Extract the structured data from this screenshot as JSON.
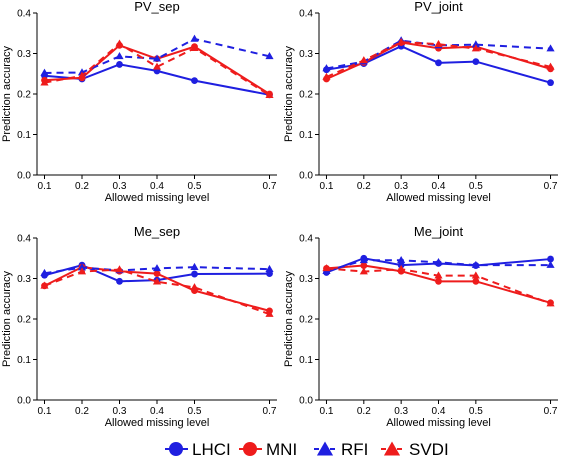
{
  "chart_data": [
    {
      "type": "line",
      "title": "PV_sep",
      "xlabel": "Allowed missing level",
      "ylabel": "Prediction accuracy",
      "x": [
        0.1,
        0.2,
        0.3,
        0.4,
        0.5,
        0.7
      ],
      "xlim": [
        0.08,
        0.72
      ],
      "ylim": [
        0.0,
        0.4
      ],
      "yticks": [
        "0.0",
        "0.1",
        "0.2",
        "0.3",
        "0.4"
      ],
      "xticks": [
        "0.1",
        "0.2",
        "0.3",
        "0.4",
        "0.5",
        "0.7"
      ],
      "series": [
        {
          "name": "LHCI",
          "values": [
            0.245,
            0.237,
            0.273,
            0.257,
            0.233,
            0.198
          ]
        },
        {
          "name": "MNI",
          "values": [
            0.234,
            0.24,
            0.32,
            0.287,
            0.317,
            0.2
          ]
        },
        {
          "name": "RFI",
          "values": [
            0.252,
            0.253,
            0.293,
            0.287,
            0.336,
            0.293
          ]
        },
        {
          "name": "SVDI",
          "values": [
            0.228,
            0.245,
            0.324,
            0.267,
            0.313,
            0.197
          ]
        }
      ]
    },
    {
      "type": "line",
      "title": "PV_joint",
      "xlabel": "Allowed missing level",
      "ylabel": "Prediction accuracy",
      "x": [
        0.1,
        0.2,
        0.3,
        0.4,
        0.5,
        0.7
      ],
      "xlim": [
        0.08,
        0.72
      ],
      "ylim": [
        0.0,
        0.4
      ],
      "yticks": [
        "0.0",
        "0.1",
        "0.2",
        "0.3",
        "0.4"
      ],
      "xticks": [
        "0.1",
        "0.2",
        "0.3",
        "0.4",
        "0.5",
        "0.7"
      ],
      "series": [
        {
          "name": "LHCI",
          "values": [
            0.26,
            0.275,
            0.318,
            0.277,
            0.28,
            0.228
          ]
        },
        {
          "name": "MNI",
          "values": [
            0.237,
            0.278,
            0.327,
            0.313,
            0.317,
            0.262
          ]
        },
        {
          "name": "RFI",
          "values": [
            0.263,
            0.28,
            0.332,
            0.32,
            0.322,
            0.312
          ]
        },
        {
          "name": "SVDI",
          "values": [
            0.242,
            0.283,
            0.328,
            0.323,
            0.312,
            0.267
          ]
        }
      ]
    },
    {
      "type": "line",
      "title": "Me_sep",
      "xlabel": "Allowed missing level",
      "ylabel": "Prediction accuracy",
      "x": [
        0.1,
        0.2,
        0.3,
        0.4,
        0.5,
        0.7
      ],
      "xlim": [
        0.08,
        0.72
      ],
      "ylim": [
        0.0,
        0.4
      ],
      "yticks": [
        "0.0",
        "0.1",
        "0.2",
        "0.3",
        "0.4"
      ],
      "xticks": [
        "0.1",
        "0.2",
        "0.3",
        "0.4",
        "0.5",
        "0.7"
      ],
      "series": [
        {
          "name": "LHCI",
          "values": [
            0.308,
            0.333,
            0.293,
            0.296,
            0.311,
            0.312
          ]
        },
        {
          "name": "MNI",
          "values": [
            0.282,
            0.328,
            0.318,
            0.312,
            0.27,
            0.22
          ]
        },
        {
          "name": "RFI",
          "values": [
            0.313,
            0.327,
            0.32,
            0.325,
            0.328,
            0.323
          ]
        },
        {
          "name": "SVDI",
          "values": [
            0.282,
            0.317,
            0.322,
            0.292,
            0.278,
            0.212
          ]
        }
      ]
    },
    {
      "type": "line",
      "title": "Me_joint",
      "xlabel": "Allowed missing level",
      "ylabel": "Prediction accuracy",
      "x": [
        0.1,
        0.2,
        0.3,
        0.4,
        0.5,
        0.7
      ],
      "xlim": [
        0.08,
        0.72
      ],
      "ylim": [
        0.0,
        0.4
      ],
      "yticks": [
        "0.0",
        "0.1",
        "0.2",
        "0.3",
        "0.4"
      ],
      "xticks": [
        "0.1",
        "0.2",
        "0.3",
        "0.4",
        "0.5",
        "0.7"
      ],
      "series": [
        {
          "name": "LHCI",
          "values": [
            0.315,
            0.35,
            0.333,
            0.337,
            0.332,
            0.348
          ]
        },
        {
          "name": "MNI",
          "values": [
            0.325,
            0.332,
            0.318,
            0.293,
            0.293,
            0.24
          ]
        },
        {
          "name": "RFI",
          "values": [
            0.318,
            0.345,
            0.345,
            0.34,
            0.333,
            0.333
          ]
        },
        {
          "name": "SVDI",
          "values": [
            0.325,
            0.317,
            0.323,
            0.307,
            0.307,
            0.238
          ]
        }
      ]
    }
  ],
  "legend": {
    "placement": "bottom-center",
    "items": [
      {
        "label": "LHCI",
        "color": "#1f1fe0",
        "marker": "circle",
        "dashed": false
      },
      {
        "label": "MNI",
        "color": "#ee1c1c",
        "marker": "circle",
        "dashed": false
      },
      {
        "label": "RFI",
        "color": "#1f1fe0",
        "marker": "triangle",
        "dashed": true
      },
      {
        "label": "SVDI",
        "color": "#ee1c1c",
        "marker": "triangle",
        "dashed": true
      }
    ]
  },
  "colors": {
    "blue": "#1f1fe0",
    "red": "#ee1c1c",
    "axis": "#000000"
  }
}
